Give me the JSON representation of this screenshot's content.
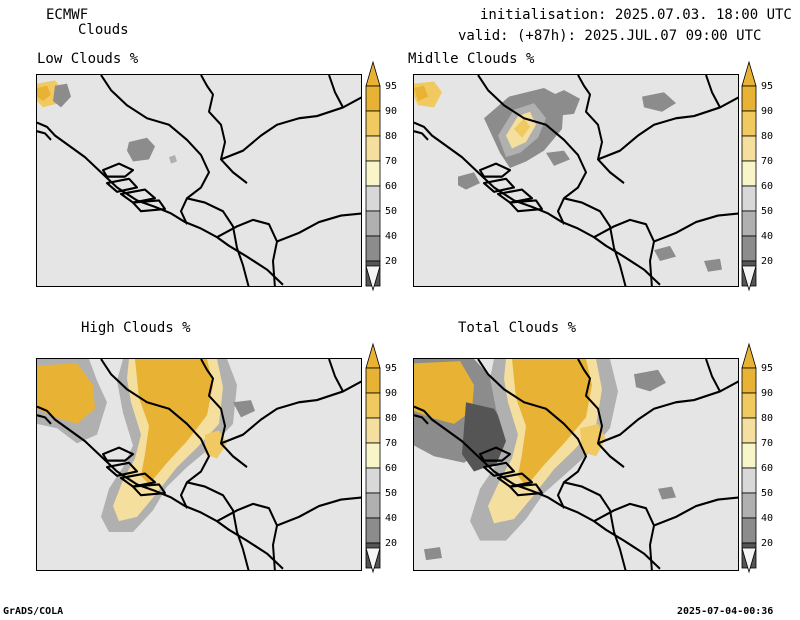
{
  "header": {
    "model": "ECMWF",
    "product": "Clouds",
    "init": "initialisation: 2025.07.03. 18:00 UTC",
    "valid": "valid: (+87h): 2025.JUL.07 09:00 UTC"
  },
  "panels": [
    {
      "title": "Low Clouds %"
    },
    {
      "title": "Midlle Clouds %"
    },
    {
      "title": "High Clouds %"
    },
    {
      "title": "Total Clouds %"
    }
  ],
  "colorbar": {
    "labels": [
      "95",
      "90",
      "80",
      "70",
      "60",
      "50",
      "40",
      "20"
    ],
    "colors": [
      "#e8b234",
      "#f0c960",
      "#f5df9e",
      "#f8f5c8",
      "#d8d8d8",
      "#b0b0b0",
      "#8c8c8c",
      "#555555"
    ]
  },
  "footer": {
    "left": "GrADS/COLA",
    "right": "2025-07-04-00:36"
  }
}
